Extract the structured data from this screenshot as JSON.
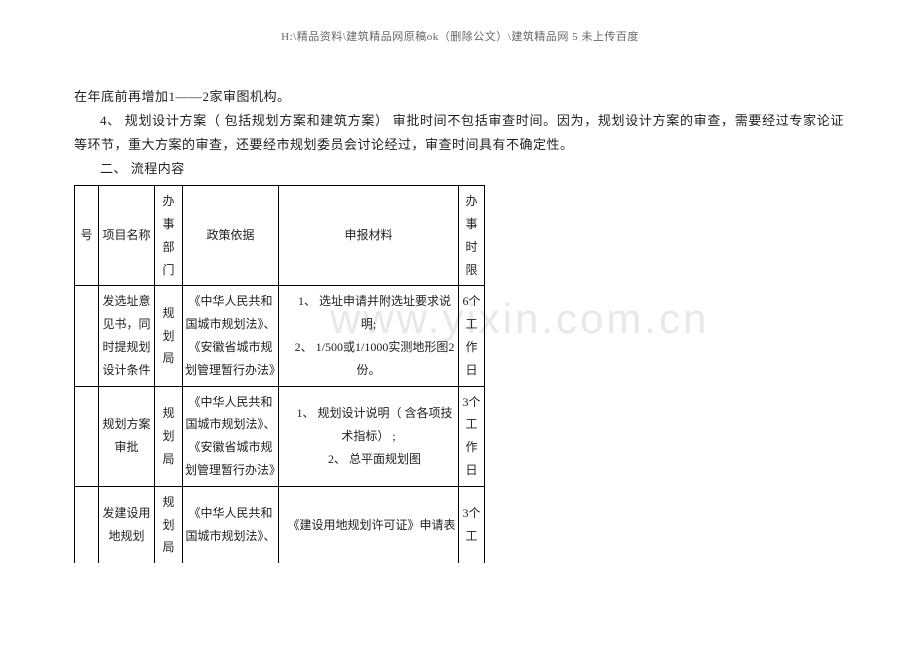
{
  "header_path": "H:\\精品资料\\建筑精品网原稿ok（删除公文）\\建筑精品网 5 未上传百度",
  "para1": "在年底前再增加1——2家审图机构。",
  "para2": "4、 规划设计方案（ 包括规划方案和建筑方案） 审批时间不包括审查时间。因为，规划设计方案的审查，需要经过专家论证等环节，重大方案的审查，还要经市规划委员会讨论经过，审查时间具有不确定性。",
  "para3": "二、 流程内容",
  "watermark": "www.yixin.com.cn",
  "table": {
    "headers": {
      "col1": "号",
      "col2": "项目名称",
      "col3": "办事部门",
      "col4": "政策依据",
      "col5": "申报材料",
      "col6": "办事时限"
    },
    "rows": [
      {
        "num": "",
        "name": "发选址意见书，同时提规划设计条件",
        "dept": "规划局",
        "basis": "《中华人民共和国城市规划法》、《安徽省城市规划管理暂行办法》",
        "material": "　1、 选址申请并附选址要求说明;\n　2、 1/500或1/1000实测地形图2份。",
        "time": "6个工作日"
      },
      {
        "num": "",
        "name": "规划方案审批",
        "dept": "规划局",
        "basis": "《中华人民共和国城市规划法》、《安徽省城市规划管理暂行办法》",
        "material": "　1、 规划设计说明（ 含各项技术指标） ;\n　2、 总平面规划图",
        "time": "3个工作日"
      },
      {
        "num": "",
        "name": "发建设用地规划",
        "dept": "规划局",
        "basis": "《中华人民共和国城市规划法》、",
        "material": "　《建设用地规划许可证》申请表",
        "time": "3个工"
      }
    ]
  }
}
